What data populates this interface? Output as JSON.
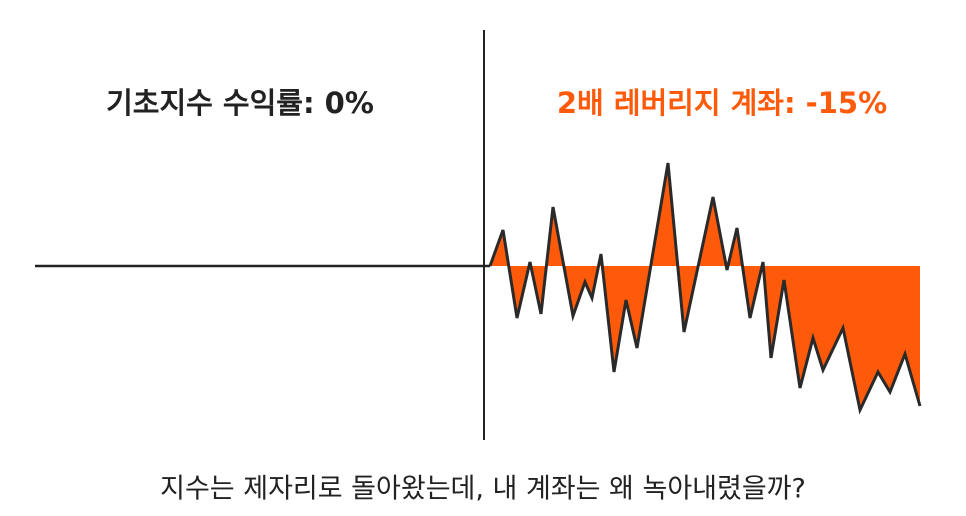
{
  "labels": {
    "left": "기초지수 수익률: 0%",
    "right": "2배 레버리지 계좌: -15%"
  },
  "caption": "지수는 제자리로 돌아왔는데, 내 계좌는 왜 녹아내렸을까?"
}
